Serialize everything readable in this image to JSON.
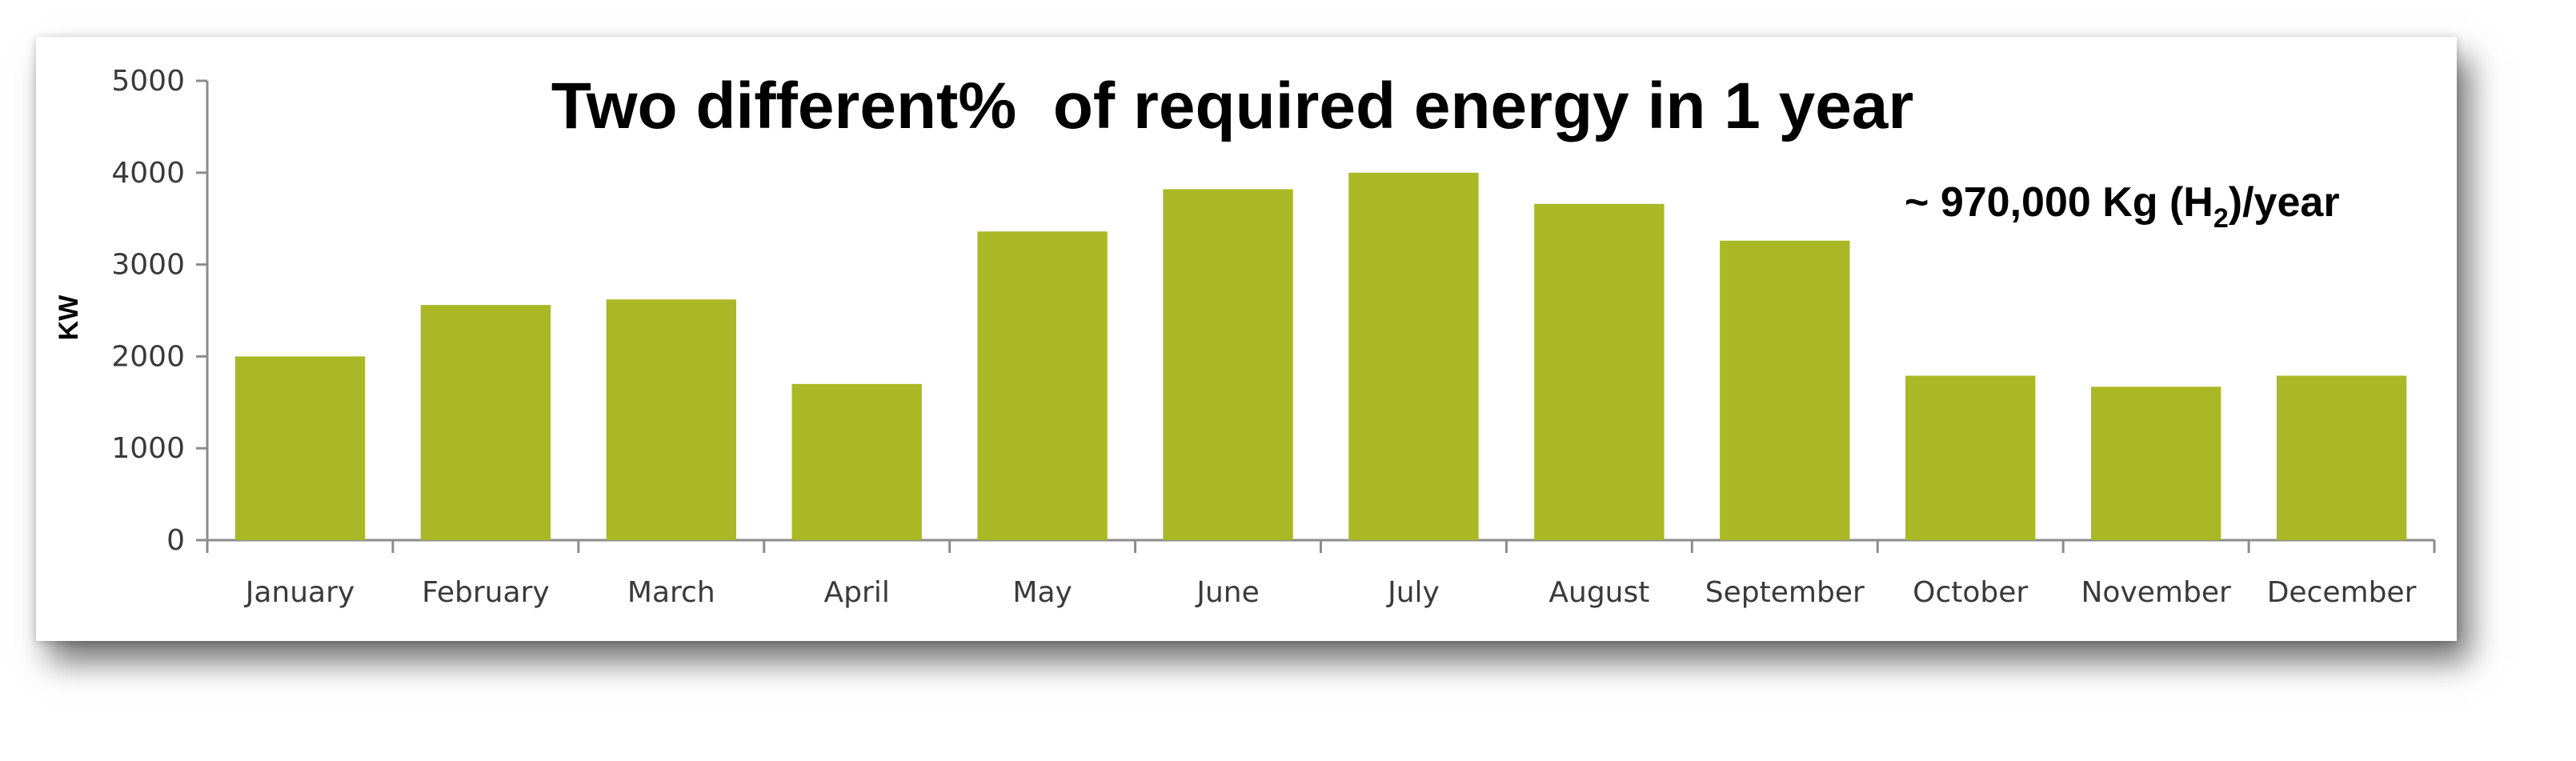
{
  "chart_data": {
    "type": "bar",
    "title": "Two different%  of required energy in 1 year",
    "annotation": {
      "prefix": "~ 970,000 Kg (H",
      "subscript": "2",
      "suffix": ")/year"
    },
    "xlabel": "",
    "ylabel": "KW",
    "ylim": [
      0,
      5000
    ],
    "yticks": [
      0,
      1000,
      2000,
      3000,
      4000,
      5000
    ],
    "grid": false,
    "legend": "none",
    "bar_color": "#aab825",
    "categories": [
      "January",
      "February",
      "March",
      "April",
      "May",
      "June",
      "July",
      "August",
      "September",
      "October",
      "November",
      "December"
    ],
    "values": [
      2000,
      2560,
      2620,
      1700,
      3360,
      3820,
      4000,
      3660,
      3260,
      1790,
      1670,
      1790
    ]
  }
}
